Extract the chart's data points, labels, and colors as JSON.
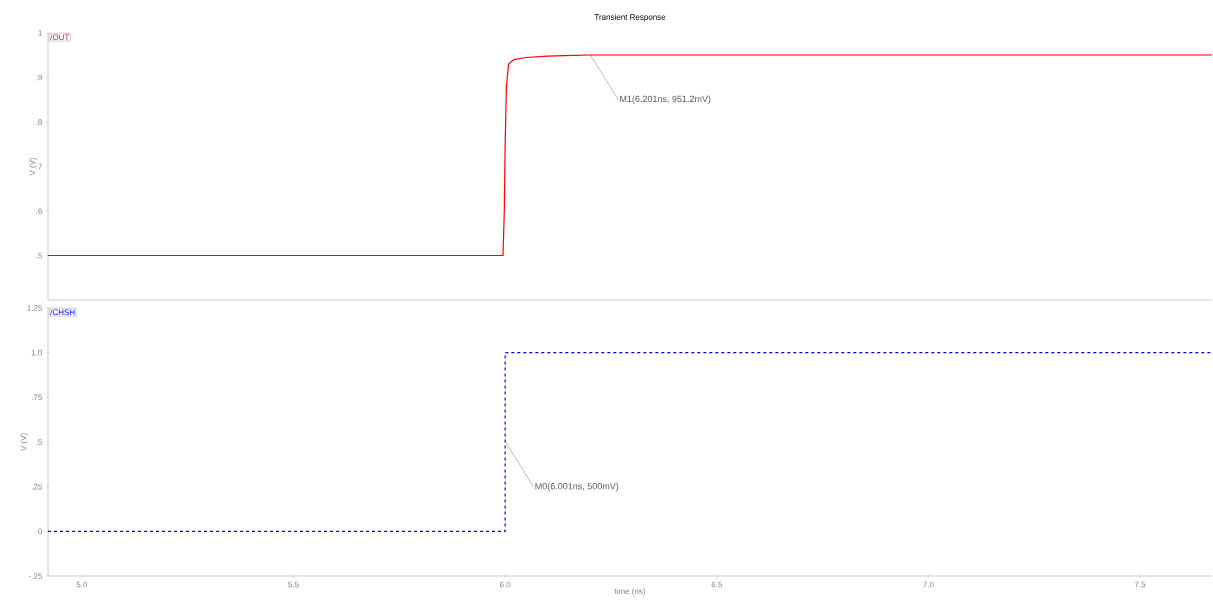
{
  "chart_data": [
    {
      "type": "line",
      "title": "Transient Response",
      "ylabel": "V (V)",
      "xlim": [
        4.92,
        7.67
      ],
      "ylim": [
        0.4,
        1.0
      ],
      "yticks": [
        {
          "value": 0.5,
          "label": ".5"
        },
        {
          "value": 0.6,
          "label": ".6"
        },
        {
          "value": 0.7,
          "label": ".7"
        },
        {
          "value": 0.8,
          "label": ".8"
        },
        {
          "value": 0.9,
          "label": ".9"
        },
        {
          "value": 1.0,
          "label": "1"
        }
      ],
      "tick_labels": "y",
      "legend": "top left",
      "line_style": "solid",
      "series": [
        {
          "name": "/OUT",
          "color": "#ff0000",
          "x": [
            4.92,
            5.995,
            5.998,
            6.0,
            6.003,
            6.008,
            6.02,
            6.05,
            6.1,
            6.2,
            7.67
          ],
          "values": [
            0.5,
            0.5,
            0.6,
            0.75,
            0.88,
            0.93,
            0.94,
            0.945,
            0.948,
            0.951,
            0.951
          ]
        }
      ],
      "annotations": [
        {
          "text": "M1(6.201ns, 951.2mV)",
          "x": 6.201,
          "y": 0.9512
        }
      ]
    },
    {
      "type": "line",
      "xlabel": "time (ns)",
      "ylabel": "V (V)",
      "xlim": [
        4.92,
        7.67
      ],
      "ylim": [
        -0.25,
        1.25
      ],
      "xticks": [
        {
          "value": 5.0,
          "label": "5.0"
        },
        {
          "value": 5.5,
          "label": "5.5"
        },
        {
          "value": 6.0,
          "label": "6.0"
        },
        {
          "value": 6.5,
          "label": "6.5"
        },
        {
          "value": 7.0,
          "label": "7.0"
        },
        {
          "value": 7.5,
          "label": "7.5"
        }
      ],
      "yticks": [
        {
          "value": -0.25,
          "label": "-.25"
        },
        {
          "value": 0,
          "label": "0"
        },
        {
          "value": 0.25,
          "label": ".25"
        },
        {
          "value": 0.5,
          "label": ".5"
        },
        {
          "value": 0.75,
          "label": ".75"
        },
        {
          "value": 1.0,
          "label": "1.0"
        },
        {
          "value": 1.25,
          "label": "1.25"
        }
      ],
      "legend": "top left",
      "line_style": "dashed",
      "series": [
        {
          "name": "/CHSH",
          "color": "#0000ff",
          "x": [
            4.92,
            6.0,
            6.0,
            7.67
          ],
          "values": [
            0,
            0,
            1,
            1
          ]
        }
      ],
      "annotations": [
        {
          "text": "M0(6.001ns, 500mV)",
          "x": 6.001,
          "y": 0.5
        }
      ]
    }
  ]
}
